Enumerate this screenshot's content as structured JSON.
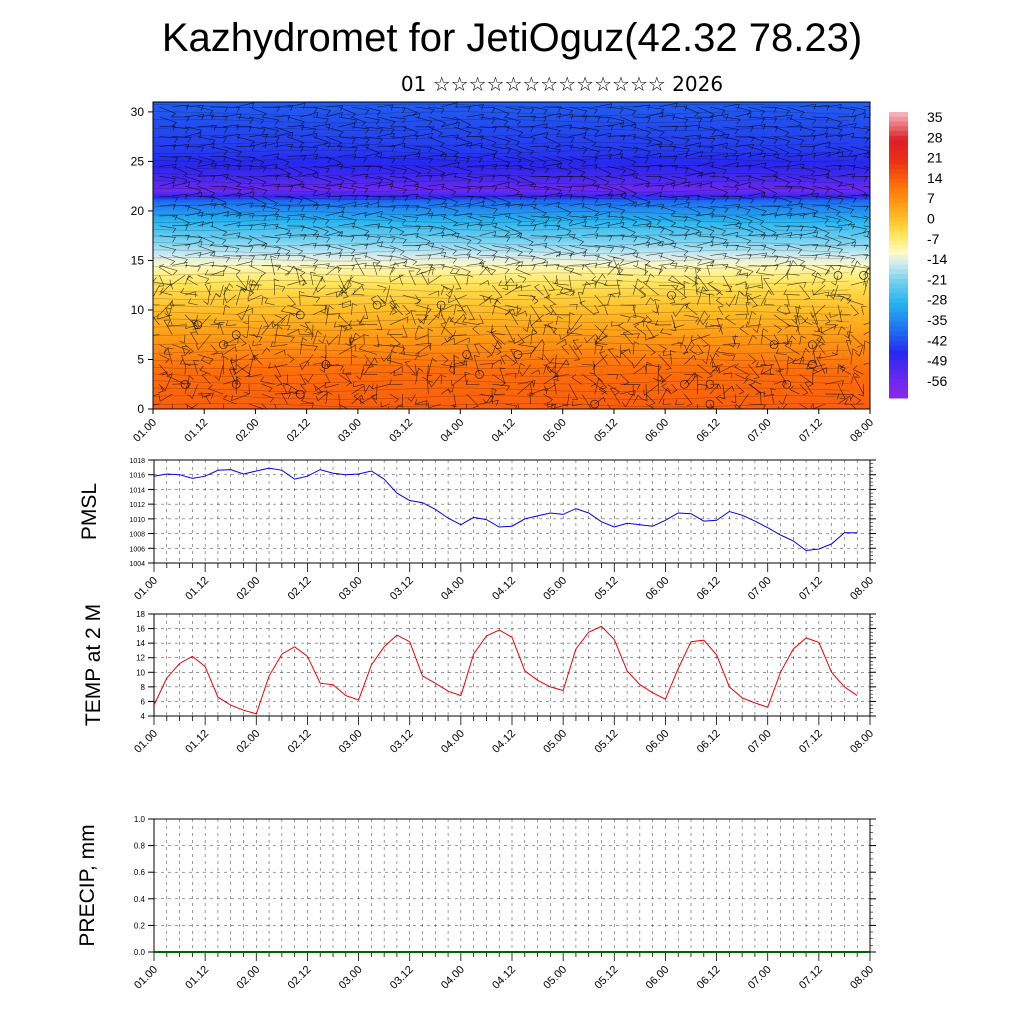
{
  "header": {
    "title": "Kazhydromet for JetiOguz(42.32 78.23)",
    "subtitle": "01 ☆☆☆☆☆☆☆☆☆☆☆☆☆ 2026"
  },
  "chart_data": [
    {
      "type": "heatmap",
      "name": "temperature-wind-profile",
      "xlabel": "",
      "ylabel": "",
      "x_ticks": [
        "01.00",
        "01.12",
        "02.00",
        "02.12",
        "03.00",
        "03.12",
        "04.00",
        "04.12",
        "05.00",
        "05.12",
        "06.00",
        "06.12",
        "07.00",
        "07.12",
        "08.00"
      ],
      "y_ticks": [
        "0",
        "5",
        "10",
        "15",
        "20",
        "25",
        "30"
      ],
      "ylim": [
        0,
        31
      ],
      "colorbar_labels": [
        "35",
        "28",
        "21",
        "14",
        "7",
        "0",
        "-7",
        "-14",
        "-21",
        "-28",
        "-35",
        "-42",
        "-49",
        "-56"
      ],
      "colorbar_range": [
        -62,
        40
      ],
      "level_temperature_profile": {
        "levels": [
          0,
          4,
          8,
          12,
          14,
          16,
          19,
          21,
          22,
          24,
          26,
          31
        ],
        "temps": [
          16,
          14,
          6,
          -2,
          -8,
          -16,
          -28,
          -38,
          -56,
          -48,
          -44,
          -40
        ]
      },
      "overlay": "wind-barbs"
    },
    {
      "type": "line",
      "name": "pmsl",
      "ylabel": "PMSL",
      "ylim": [
        1004,
        1018
      ],
      "y_ticks": [
        "1004",
        "1006",
        "1008",
        "1010",
        "1012",
        "1014",
        "1016",
        "1018"
      ],
      "x_ticks": [
        "01.00",
        "01.12",
        "02.00",
        "02.12",
        "03.00",
        "03.12",
        "04.00",
        "04.12",
        "05.00",
        "05.12",
        "06.00",
        "06.12",
        "07.00",
        "07.12",
        "08.00"
      ],
      "x": [
        0,
        3,
        6,
        9,
        12,
        15,
        18,
        21,
        24,
        27,
        30,
        33,
        36,
        39,
        42,
        45,
        48,
        51,
        54,
        57,
        60,
        63,
        66,
        69,
        72,
        75,
        78,
        81,
        84,
        87,
        90,
        93,
        96,
        99,
        102,
        105,
        108,
        111,
        114,
        117,
        120,
        123,
        126,
        129,
        132,
        135,
        138,
        141,
        144,
        147,
        150,
        153,
        156,
        159,
        162,
        165
      ],
      "values": [
        1015.8,
        1016.1,
        1016.0,
        1015.5,
        1015.8,
        1016.6,
        1016.7,
        1016.1,
        1016.5,
        1016.9,
        1016.6,
        1015.4,
        1015.8,
        1016.7,
        1016.2,
        1016.0,
        1016.1,
        1016.5,
        1015.4,
        1013.5,
        1012.5,
        1012.2,
        1011.3,
        1010.1,
        1009.2,
        1010.2,
        1009.9,
        1008.9,
        1009.0,
        1010.0,
        1010.4,
        1010.8,
        1010.6,
        1011.4,
        1010.8,
        1009.6,
        1008.9,
        1009.4,
        1009.2,
        1009.0,
        1009.8,
        1010.8,
        1010.7,
        1009.7,
        1009.8,
        1011.0,
        1010.5,
        1009.7,
        1008.8,
        1007.8,
        1007.0,
        1005.7,
        1005.9,
        1006.6,
        1008.1,
        1008.1
      ]
    },
    {
      "type": "line",
      "name": "temp-2m",
      "ylabel": "TEMP at 2 M",
      "ylim": [
        4,
        18
      ],
      "y_ticks": [
        "4",
        "6",
        "8",
        "10",
        "12",
        "14",
        "16",
        "18"
      ],
      "x_ticks": [
        "01.00",
        "01.12",
        "02.00",
        "02.12",
        "03.00",
        "03.12",
        "04.00",
        "04.12",
        "05.00",
        "05.12",
        "06.00",
        "06.12",
        "07.00",
        "07.12",
        "08.00"
      ],
      "x": [
        0,
        3,
        6,
        9,
        12,
        15,
        18,
        21,
        24,
        27,
        30,
        33,
        36,
        39,
        42,
        45,
        48,
        51,
        54,
        57,
        60,
        63,
        66,
        69,
        72,
        75,
        78,
        81,
        84,
        87,
        90,
        93,
        96,
        99,
        102,
        105,
        108,
        111,
        114,
        117,
        120,
        123,
        126,
        129,
        132,
        135,
        138,
        141,
        144,
        147,
        150,
        153,
        156,
        159,
        162,
        165
      ],
      "values": [
        5.5,
        9.2,
        11.2,
        12.2,
        10.8,
        6.6,
        5.5,
        4.8,
        4.3,
        9.5,
        12.5,
        13.5,
        12.2,
        8.5,
        8.3,
        6.8,
        6.2,
        11.0,
        13.5,
        15.1,
        14.2,
        9.5,
        8.5,
        7.4,
        6.8,
        12.5,
        15.0,
        15.8,
        14.8,
        10.2,
        8.9,
        8.0,
        7.5,
        13.2,
        15.5,
        16.3,
        14.5,
        10.2,
        8.3,
        7.2,
        6.3,
        10.5,
        14.2,
        14.4,
        12.4,
        8.0,
        6.5,
        5.8,
        5.2,
        10.0,
        13.2,
        14.7,
        14.1,
        10.0,
        8.0,
        6.8
      ]
    },
    {
      "type": "line",
      "name": "precip",
      "ylabel": "PRECIP, mm",
      "ylim": [
        0,
        1
      ],
      "y_ticks": [
        "0.0",
        "0.2",
        "0.4",
        "0.6",
        "0.8",
        "1.0"
      ],
      "x_ticks": [
        "01.00",
        "01.12",
        "02.00",
        "02.12",
        "03.00",
        "03.12",
        "04.00",
        "04.12",
        "05.00",
        "05.12",
        "06.00",
        "06.12",
        "07.00",
        "07.12",
        "08.00"
      ],
      "x": [
        0,
        168
      ],
      "values": [
        0,
        0
      ]
    }
  ],
  "colors": {
    "pmsl_line": "#0000ee",
    "temp_line": "#ee0000",
    "precip_line": "#006400",
    "barb": "#000000"
  }
}
